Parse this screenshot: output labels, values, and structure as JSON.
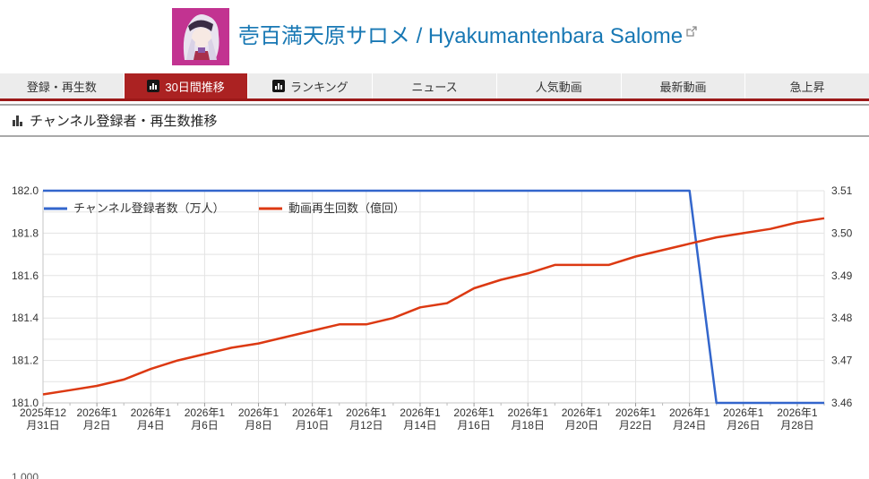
{
  "colors": {
    "accent_red": "#ab2222",
    "underline_red": "#9c1919",
    "title_blue": "#1878b4",
    "subscriber_line_blue": "#3366cc",
    "views_line_red": "#dc3912"
  },
  "header": {
    "title": "壱百満天原サロメ / Hyakumantenbara Salome",
    "external_link_icon": "external-link-icon",
    "avatar_icon": "channel-avatar"
  },
  "tabs": [
    {
      "name": "tab-subscribers-views",
      "label": "登録・再生数",
      "active": false,
      "icon": false
    },
    {
      "name": "tab-30day-trend",
      "label": "30日間推移",
      "active": true,
      "icon": true
    },
    {
      "name": "tab-ranking",
      "label": "ランキング",
      "active": false,
      "icon": true
    },
    {
      "name": "tab-news",
      "label": "ニュース",
      "active": false,
      "icon": false
    },
    {
      "name": "tab-popular-videos",
      "label": "人気動画",
      "active": false,
      "icon": false
    },
    {
      "name": "tab-latest-videos",
      "label": "最新動画",
      "active": false,
      "icon": false
    },
    {
      "name": "tab-trending",
      "label": "急上昇",
      "active": false,
      "icon": false
    }
  ],
  "section": {
    "title": "チャンネル登録者・再生数推移"
  },
  "chart_data": {
    "type": "line",
    "title": "チャンネル登録者・再生数推移",
    "grid": true,
    "legend_position": "top-left",
    "x": [
      "2025年12月31日",
      "2026年1月1日",
      "2026年1月2日",
      "2026年1月3日",
      "2026年1月4日",
      "2026年1月5日",
      "2026年1月6日",
      "2026年1月7日",
      "2026年1月8日",
      "2026年1月9日",
      "2026年1月10日",
      "2026年1月11日",
      "2026年1月12日",
      "2026年1月13日",
      "2026年1月14日",
      "2026年1月15日",
      "2026年1月16日",
      "2026年1月17日",
      "2026年1月18日",
      "2026年1月19日",
      "2026年1月20日",
      "2026年1月21日",
      "2026年1月22日",
      "2026年1月23日",
      "2026年1月24日",
      "2026年1月25日",
      "2026年1月26日",
      "2026年1月27日",
      "2026年1月28日",
      "2026年1月29日"
    ],
    "x_tick_labels": [
      [
        "2025年12",
        "月31日"
      ],
      [
        "2026年1",
        "月2日"
      ],
      [
        "2026年1",
        "月4日"
      ],
      [
        "2026年1",
        "月6日"
      ],
      [
        "2026年1",
        "月8日"
      ],
      [
        "2026年1",
        "月10日"
      ],
      [
        "2026年1",
        "月12日"
      ],
      [
        "2026年1",
        "月14日"
      ],
      [
        "2026年1",
        "月16日"
      ],
      [
        "2026年1",
        "月18日"
      ],
      [
        "2026年1",
        "月20日"
      ],
      [
        "2026年1",
        "月22日"
      ],
      [
        "2026年1",
        "月24日"
      ],
      [
        "2026年1",
        "月26日"
      ],
      [
        "2026年1",
        "月28日"
      ]
    ],
    "left_axis": {
      "min": 181.0,
      "max": 182.0,
      "ticks": [
        "182.0",
        "181.8",
        "181.6",
        "181.4",
        "181.2",
        "181.0"
      ]
    },
    "right_axis": {
      "min": 3.46,
      "max": 3.51,
      "ticks": [
        "3.51",
        "3.50",
        "3.49",
        "3.48",
        "3.47",
        "3.46"
      ]
    },
    "series": [
      {
        "name": "チャンネル登録者数（万人）",
        "axis": "left",
        "color": "#3366cc",
        "values": [
          182,
          182,
          182,
          182,
          182,
          182,
          182,
          182,
          182,
          182,
          182,
          182,
          182,
          182,
          182,
          182,
          182,
          182,
          182,
          182,
          182,
          182,
          182,
          182,
          182,
          181,
          181,
          181,
          181,
          181
        ]
      },
      {
        "name": "動画再生回数（億回）",
        "axis": "right",
        "color": "#dc3912",
        "values": [
          3.462,
          3.463,
          3.464,
          3.4655,
          3.468,
          3.47,
          3.4715,
          3.473,
          3.474,
          3.4755,
          3.477,
          3.4785,
          3.4785,
          3.48,
          3.4825,
          3.4835,
          3.487,
          3.489,
          3.4905,
          3.4925,
          3.4925,
          3.4925,
          3.4945,
          3.496,
          3.4975,
          3.499,
          3.5,
          3.501,
          3.5025,
          3.5035
        ]
      }
    ]
  },
  "next_chart": {
    "partial_ylabel": "1,000"
  }
}
